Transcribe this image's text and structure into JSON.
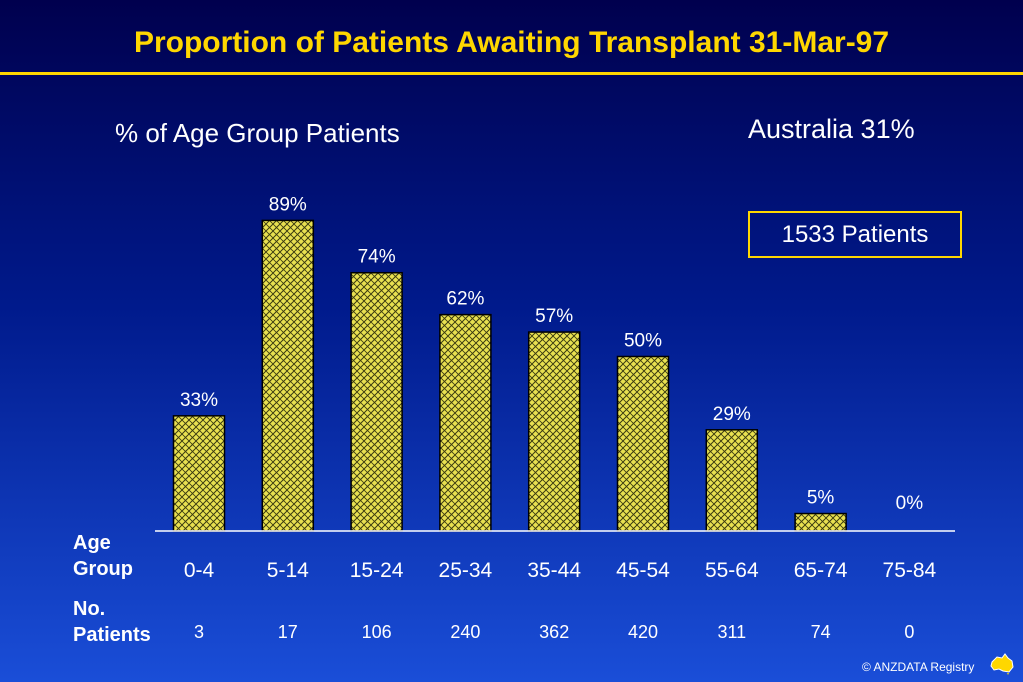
{
  "title": "Proportion of Patients Awaiting Transplant 31-Mar-97",
  "subtitle": "% of  Age Group Patients",
  "australia_label": "Australia 31%",
  "total_box": "1533  Patients",
  "row_labels": {
    "age_line1": "Age",
    "age_line2": "Group",
    "patients_line1": "No.",
    "patients_line2": "Patients"
  },
  "copyright": "© ANZDATA Registry",
  "colors": {
    "title": "#ffd700",
    "bar_fill": "#e8e050",
    "bar_stroke": "#000000",
    "background_top": "#00004e",
    "background_bottom": "#1a4ed8"
  },
  "chart_data": {
    "type": "bar",
    "categories": [
      "0-4",
      "5-14",
      "15-24",
      "25-34",
      "35-44",
      "45-54",
      "55-64",
      "65-74",
      "75-84"
    ],
    "values": [
      33,
      89,
      74,
      62,
      57,
      50,
      29,
      5,
      0
    ],
    "value_labels": [
      "33%",
      "89%",
      "74%",
      "62%",
      "57%",
      "50%",
      "29%",
      "5%",
      "0%"
    ],
    "patient_counts": [
      "3",
      "17",
      "106",
      "240",
      "362",
      "420",
      "311",
      "74",
      "0"
    ],
    "title": "% of  Age Group Patients",
    "ylim": [
      0,
      100
    ],
    "grid": false,
    "bar_pattern": "crosshatch"
  }
}
